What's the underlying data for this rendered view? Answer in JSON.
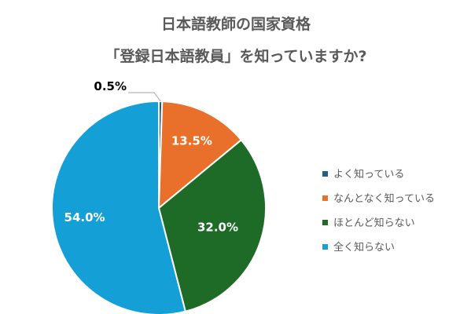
{
  "chart_data": {
    "type": "pie",
    "title": "日本語教師の国家資格",
    "subtitle": "「登録日本語教員」を知っていますか?",
    "categories": [
      "よく知っている",
      "なんとなく知っている",
      "ほとんど知らない",
      "全く知らない"
    ],
    "values": [
      0.5,
      13.5,
      32.0,
      54.0
    ],
    "data_labels": [
      "0.5%",
      "13.5%",
      "32.0%",
      "54.0%"
    ],
    "colors": [
      "#1f5f8b",
      "#e8702a",
      "#1e6b28",
      "#149fd6"
    ],
    "label_colors": [
      "#000000",
      "#ffffff",
      "#ffffff",
      "#ffffff"
    ],
    "legend_placement": "right"
  }
}
